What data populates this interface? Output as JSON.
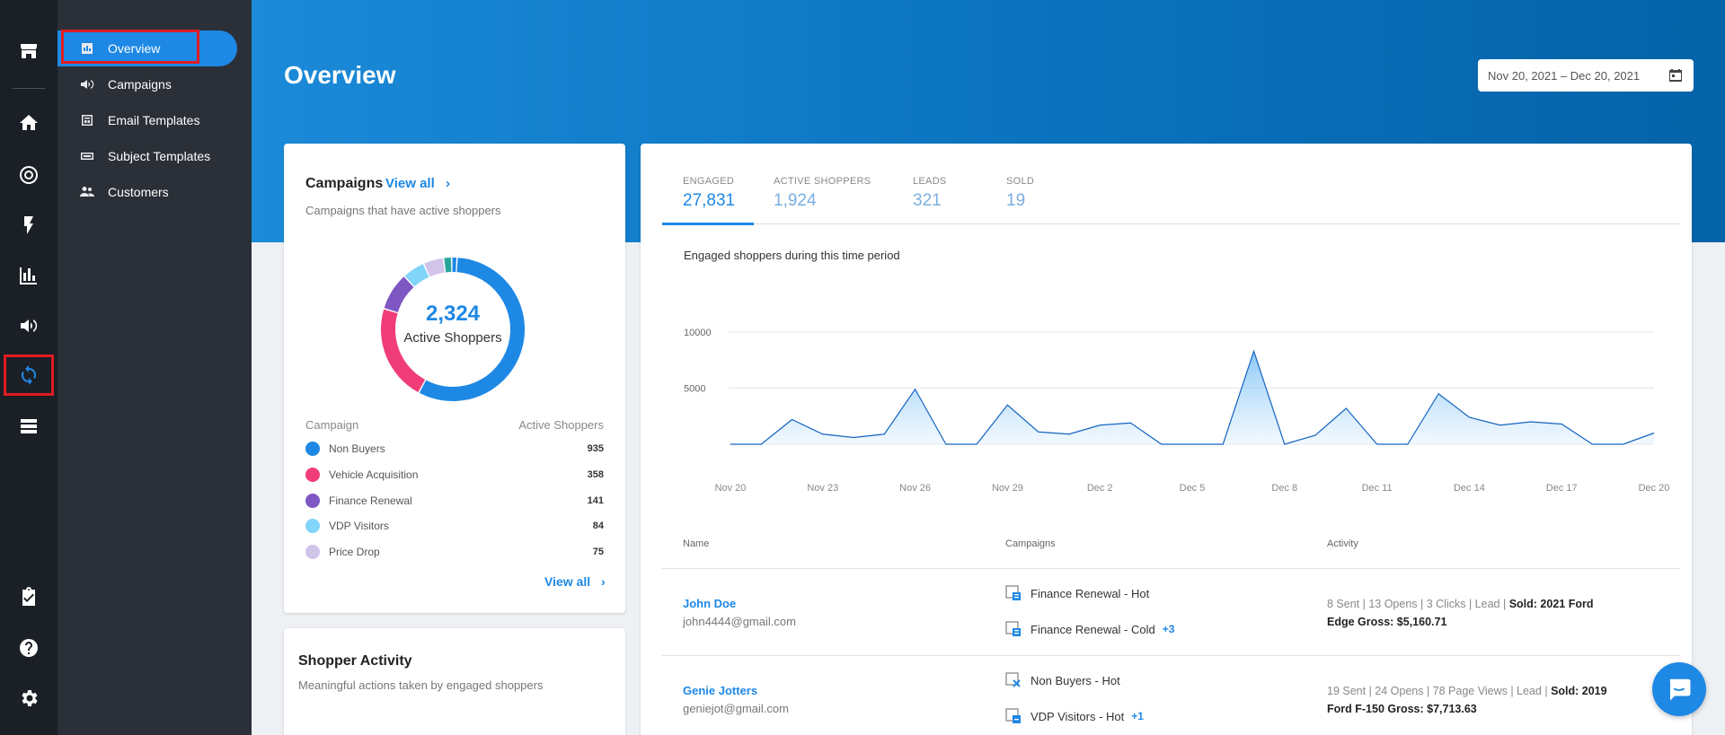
{
  "rail": {
    "icons": [
      "store-icon",
      "home-icon",
      "target-icon",
      "lightning-icon",
      "bar-chart-icon",
      "megaphone-icon",
      "refresh-icon",
      "list-icon",
      "clipboard-check-icon",
      "help-icon",
      "gear-icon"
    ]
  },
  "submenu": {
    "items": [
      {
        "label": "Overview",
        "icon": "chart-icon"
      },
      {
        "label": "Campaigns",
        "icon": "megaphone-icon"
      },
      {
        "label": "Email Templates",
        "icon": "email-template-icon"
      },
      {
        "label": "Subject Templates",
        "icon": "subject-template-icon"
      },
      {
        "label": "Customers",
        "icon": "people-icon"
      }
    ]
  },
  "header": {
    "title": "Overview",
    "date_range": "Nov 20, 2021 – Dec 20, 2021"
  },
  "campaigns_card": {
    "title": "Campaigns",
    "view_all": "View all",
    "subtitle": "Campaigns that have active shoppers",
    "donut_value": "2,324",
    "donut_label": "Active Shoppers",
    "col_campaign": "Campaign",
    "col_active": "Active Shoppers",
    "rows": [
      {
        "name": "Non Buyers",
        "value": "935",
        "color": "#1e88e5"
      },
      {
        "name": "Vehicle Acquisition",
        "value": "358",
        "color": "#f03d7a"
      },
      {
        "name": "Finance Renewal",
        "value": "141",
        "color": "#7e57c2"
      },
      {
        "name": "VDP Visitors",
        "value": "84",
        "color": "#81d4fa"
      },
      {
        "name": "Price Drop",
        "value": "75",
        "color": "#d1c4e9"
      }
    ],
    "view_all_bottom": "View all"
  },
  "shopper_card": {
    "title": "Shopper Activity",
    "subtitle": "Meaningful actions taken by engaged shoppers"
  },
  "tabs": [
    {
      "label": "ENGAGED",
      "value": "27,831"
    },
    {
      "label": "ACTIVE SHOPPERS",
      "value": "1,924"
    },
    {
      "label": "LEADS",
      "value": "321"
    },
    {
      "label": "SOLD",
      "value": "19"
    }
  ],
  "chart_data": {
    "type": "area",
    "title": "Engaged shoppers during this time period",
    "x": [
      "Nov 20",
      "Nov 21",
      "Nov 22",
      "Nov 23",
      "Nov 24",
      "Nov 25",
      "Nov 26",
      "Nov 27",
      "Nov 28",
      "Nov 29",
      "Nov 30",
      "Dec 1",
      "Dec 2",
      "Dec 3",
      "Dec 4",
      "Dec 5",
      "Dec 6",
      "Dec 7",
      "Dec 8",
      "Dec 9",
      "Dec 10",
      "Dec 11",
      "Dec 12",
      "Dec 13",
      "Dec 14",
      "Dec 15",
      "Dec 16",
      "Dec 17",
      "Dec 18",
      "Dec 19",
      "Dec 20"
    ],
    "y": [
      0,
      0,
      2200,
      900,
      600,
      900,
      4900,
      0,
      0,
      3500,
      1100,
      900,
      1700,
      1900,
      0,
      0,
      0,
      8300,
      0,
      800,
      3200,
      0,
      0,
      4500,
      2400,
      1700,
      2000,
      1800,
      0,
      0,
      1000
    ],
    "x_tick_labels": [
      "Nov 20",
      "Nov 23",
      "Nov 26",
      "Nov 29",
      "Dec 2",
      "Dec 5",
      "Dec 8",
      "Dec 11",
      "Dec 14",
      "Dec 17",
      "Dec 20"
    ],
    "y_tick_labels": [
      "10000",
      "5000"
    ],
    "ylim": [
      0,
      10000
    ],
    "grid": true,
    "color": "#1e88e5"
  },
  "table": {
    "col_name": "Name",
    "col_campaigns": "Campaigns",
    "col_activity": "Activity",
    "rows": [
      {
        "name": "John Doe",
        "email": "john4444@gmail.com",
        "campaign1": "Finance Renewal - Hot",
        "campaign2": "Finance Renewal - Cold",
        "more": "+3",
        "activity": "8 Sent  |  13 Opens  |  3 Clicks  |  Lead  |",
        "sold": "Sold: 2021 Ford",
        "gross": "Edge Gross: $5,160.71"
      },
      {
        "name": "Genie Jotters",
        "email": "geniejot@gmail.com",
        "campaign1": "Non Buyers - Hot",
        "campaign2": "VDP Visitors - Hot",
        "more": "+1",
        "activity": "19 Sent  |  24 Opens  |  78 Page Views  |  Lead  |",
        "sold": "Sold: 2019",
        "gross": "Ford F-150 Gross: $7,713.63"
      }
    ]
  }
}
